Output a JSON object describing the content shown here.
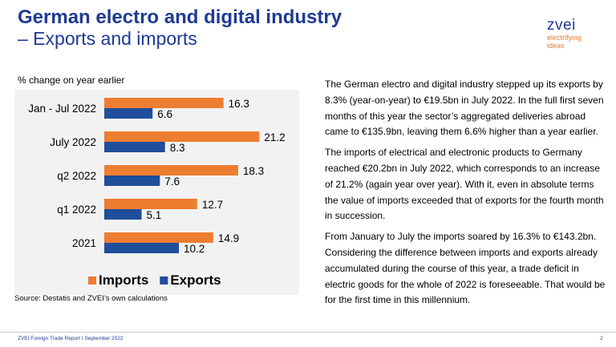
{
  "header": {
    "title_line1": "German electro and digital industry",
    "title_line2": "– Exports and imports"
  },
  "logo": {
    "word": "zvei",
    "tagline_line1": "electrifying",
    "tagline_line2": "ideas"
  },
  "colors": {
    "imports": "#ed7d31",
    "exports": "#1f4e9a",
    "title": "#1f3a93",
    "tagline": "#e8782a"
  },
  "chart_data": {
    "type": "bar",
    "orientation": "horizontal",
    "unit_label": "% change on year earlier",
    "categories": [
      "Jan - Jul 2022",
      "July 2022",
      "q2 2022",
      "q1 2022",
      "2021"
    ],
    "series": [
      {
        "name": "Imports",
        "values": [
          16.3,
          21.2,
          18.3,
          12.7,
          14.9
        ]
      },
      {
        "name": "Exports",
        "values": [
          6.6,
          8.3,
          7.6,
          5.1,
          10.2
        ]
      }
    ],
    "xlim": [
      0,
      25
    ],
    "grid": false,
    "legend_position": "bottom"
  },
  "source": "Source: Destatis and ZVEI's own calculations",
  "paragraphs": [
    "The German electro and digital industry stepped up its exports by 8.3% (year-on-year) to €19.5bn in July 2022. In the full first seven months of this year the sector’s aggregated deliveries abroad came to €135.9bn, leaving them 6.6% higher than a year earlier.",
    "The imports of electrical and electronic products to Germany reached €20.2bn in July 2022, which corresponds to an increase of 21.2% (again year over year). With it, even in absolute terms the value of imports exceeded that of exports for the fourth month in succession.",
    "From January to July the imports soared by 16.3% to €143.2bn. Considering the difference between imports and exports already accumulated during the course of this year, a trade deficit in electric goods for the whole of 2022 is foreseeable. That would be for the first time in this millennium."
  ],
  "footer": {
    "left": "ZVEI Foreign Trade Report I September 2022",
    "page_number": "2"
  }
}
